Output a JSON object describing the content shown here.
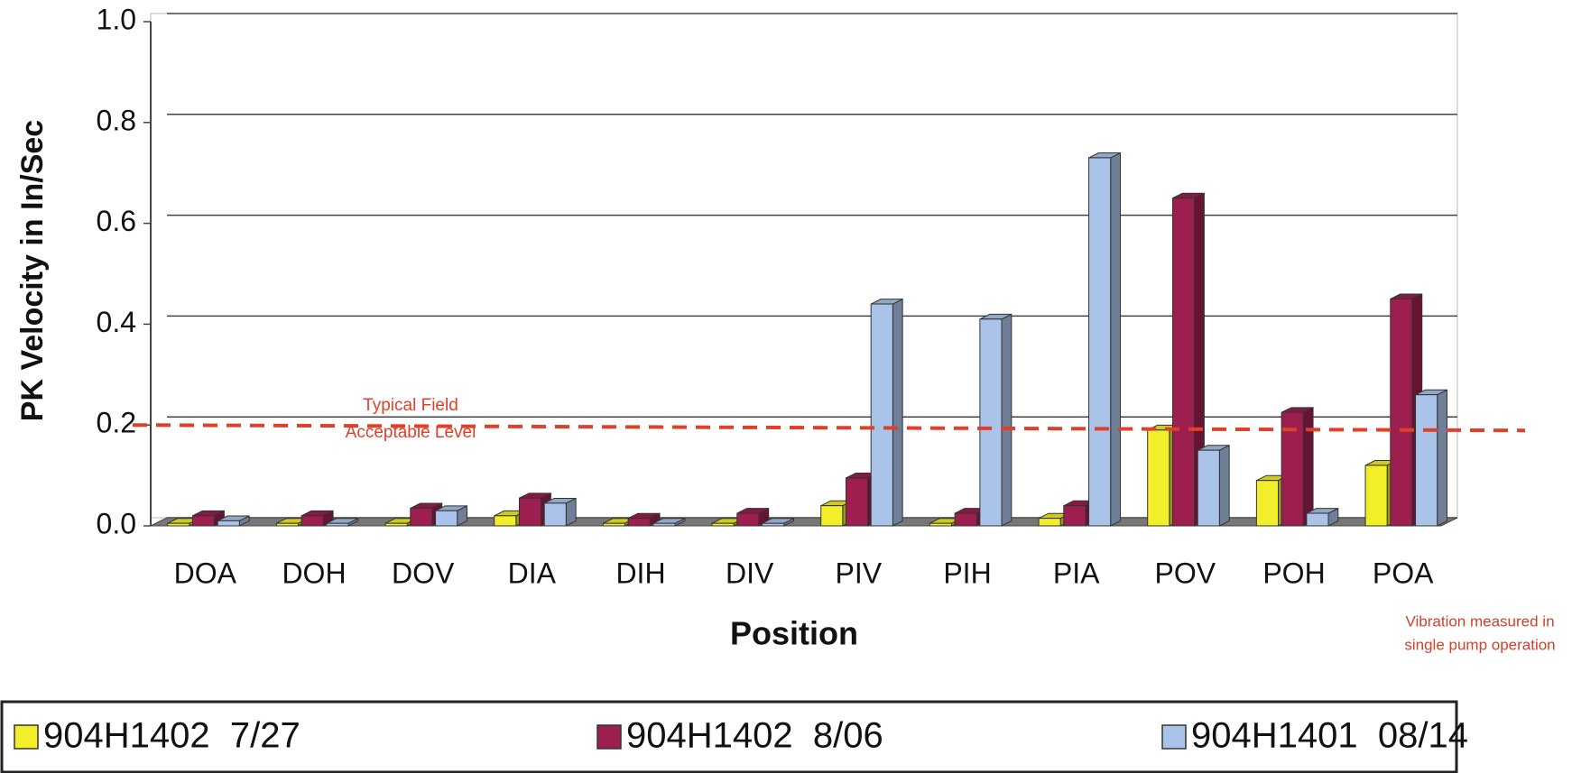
{
  "chart_data": {
    "type": "bar",
    "y_label": "PK Velocity in In/Sec",
    "x_label": "Position",
    "categories": [
      "DOA",
      "DOH",
      "DOV",
      "DIA",
      "DIH",
      "DIV",
      "PIV",
      "PIH",
      "PIA",
      "POV",
      "POH",
      "POA"
    ],
    "series": [
      {
        "name": "904H1402  7/27",
        "color": "#f2ee2a",
        "values": [
          0.005,
          0.005,
          0.005,
          0.02,
          0.005,
          0.005,
          0.04,
          0.005,
          0.015,
          0.19,
          0.09,
          0.12
        ]
      },
      {
        "name": "904H1402  8/06",
        "color": "#9c1f4f",
        "values": [
          0.02,
          0.02,
          0.035,
          0.055,
          0.015,
          0.025,
          0.095,
          0.025,
          0.04,
          0.65,
          0.225,
          0.45
        ]
      },
      {
        "name": "904H1401  08/14",
        "color": "#a9c4e8",
        "values": [
          0.01,
          0.005,
          0.03,
          0.045,
          0.005,
          0.005,
          0.44,
          0.41,
          0.73,
          0.15,
          0.025,
          0.26
        ]
      }
    ],
    "ylim": [
      0,
      1
    ],
    "yticks": [
      {
        "value": 0,
        "label": "0.0"
      },
      {
        "value": 0.2,
        "label": "0.2"
      },
      {
        "value": 0.4,
        "label": "0.4"
      },
      {
        "value": 0.6,
        "label": "0.6"
      },
      {
        "value": 0.8,
        "label": "0.8"
      },
      {
        "value": 1,
        "label": "1.0"
      }
    ],
    "grid": true,
    "reference_line": {
      "value": 0.2,
      "color": "#e0402a",
      "label": [
        "Typical Field",
        "Acceptable Level"
      ]
    },
    "annotation": [
      "Vibration measured in",
      "single pump operation"
    ],
    "legend": "bottom"
  }
}
